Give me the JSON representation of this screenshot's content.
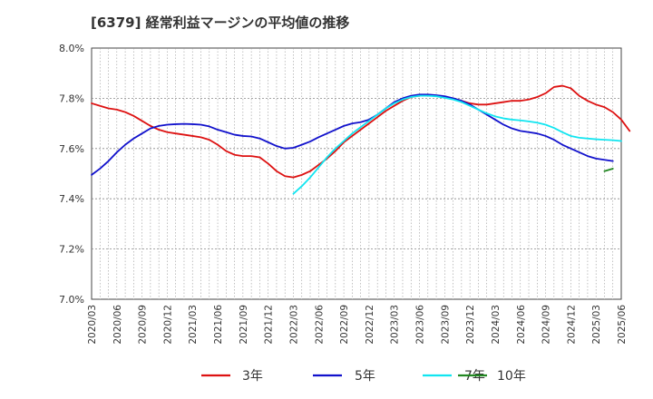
{
  "title": "[6379]  経常利益マージンの平均値の推移",
  "chart_data": {
    "type": "line",
    "title": "[6379]  経常利益マージンの平均値の推移",
    "xlabel": "",
    "ylabel": "",
    "ylim": [
      7.0,
      8.0
    ],
    "y_ticks": [
      "7.0%",
      "7.2%",
      "7.4%",
      "7.6%",
      "7.8%",
      "8.0%"
    ],
    "y_tick_values": [
      7.0,
      7.2,
      7.4,
      7.6,
      7.8,
      8.0
    ],
    "x_tick_labels": [
      "2020/03",
      "2020/06",
      "2020/09",
      "2020/12",
      "2021/03",
      "2021/06",
      "2021/09",
      "2021/12",
      "2022/03",
      "2022/06",
      "2022/09",
      "2022/12",
      "2023/03",
      "2023/06",
      "2023/09",
      "2023/12",
      "2024/03",
      "2024/06",
      "2024/09",
      "2024/12",
      "2025/03",
      "2025/06"
    ],
    "grid": true,
    "legend_position": "bottom",
    "series": [
      {
        "name": "3年",
        "color": "#dd1111",
        "start_month_index": 0,
        "values": [
          7.78,
          7.77,
          7.76,
          7.755,
          7.745,
          7.73,
          7.71,
          7.69,
          7.675,
          7.665,
          7.66,
          7.655,
          7.65,
          7.645,
          7.635,
          7.615,
          7.59,
          7.575,
          7.57,
          7.57,
          7.565,
          7.54,
          7.51,
          7.49,
          7.485,
          7.495,
          7.51,
          7.535,
          7.56,
          7.59,
          7.625,
          7.65,
          7.675,
          7.7,
          7.725,
          7.75,
          7.77,
          7.79,
          7.805,
          7.81,
          7.815,
          7.81,
          7.805,
          7.8,
          7.79,
          7.78,
          7.775,
          7.775,
          7.78,
          7.785,
          7.79,
          7.79,
          7.795,
          7.805,
          7.82,
          7.845,
          7.85,
          7.84,
          7.81,
          7.79,
          7.775,
          7.765,
          7.745,
          7.715,
          7.67
        ]
      },
      {
        "name": "5年",
        "color": "#1111cc",
        "start_month_index": 0,
        "values": [
          7.495,
          7.52,
          7.55,
          7.585,
          7.615,
          7.64,
          7.66,
          7.68,
          7.69,
          7.695,
          7.697,
          7.698,
          7.697,
          7.695,
          7.688,
          7.675,
          7.665,
          7.655,
          7.65,
          7.648,
          7.64,
          7.625,
          7.61,
          7.6,
          7.603,
          7.615,
          7.628,
          7.645,
          7.66,
          7.675,
          7.69,
          7.7,
          7.705,
          7.715,
          7.735,
          7.76,
          7.785,
          7.8,
          7.81,
          7.815,
          7.815,
          7.812,
          7.808,
          7.8,
          7.79,
          7.775,
          7.755,
          7.735,
          7.715,
          7.695,
          7.68,
          7.67,
          7.665,
          7.66,
          7.65,
          7.635,
          7.615,
          7.6,
          7.585,
          7.57,
          7.56,
          7.555,
          7.55
        ]
      },
      {
        "name": "7年",
        "color": "#11e5f0",
        "start_month_index": 24,
        "values": [
          7.42,
          7.45,
          7.485,
          7.525,
          7.565,
          7.6,
          7.63,
          7.66,
          7.685,
          7.71,
          7.735,
          7.76,
          7.78,
          7.795,
          7.805,
          7.81,
          7.81,
          7.808,
          7.802,
          7.795,
          7.785,
          7.77,
          7.755,
          7.74,
          7.728,
          7.72,
          7.715,
          7.712,
          7.708,
          7.703,
          7.695,
          7.682,
          7.665,
          7.65,
          7.643,
          7.64,
          7.637,
          7.635,
          7.633,
          7.63
        ]
      },
      {
        "name": "10年",
        "color": "#228822",
        "start_month_index": 61,
        "values": [
          7.51,
          7.52
        ]
      }
    ]
  }
}
